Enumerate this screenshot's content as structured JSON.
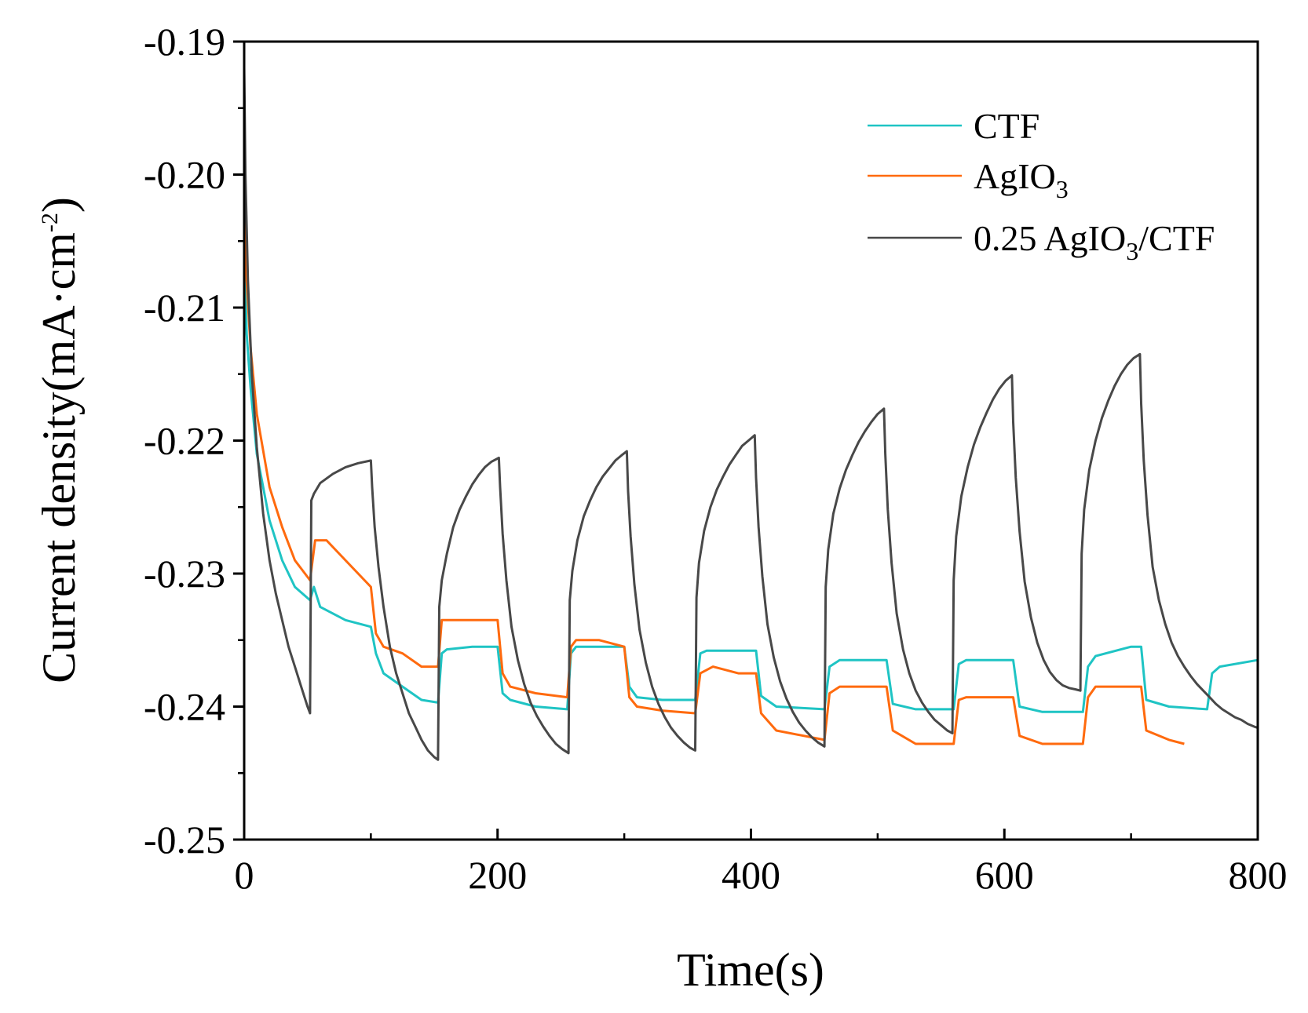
{
  "chart_data": {
    "type": "line",
    "title": "",
    "xlabel": "Time(s)",
    "ylabel_parts": {
      "main": "Current density(mA·cm",
      "sup": "-2",
      "close": ")"
    },
    "xlim": [
      0,
      800
    ],
    "ylim": [
      -0.25,
      -0.19
    ],
    "xticks": [
      0,
      200,
      400,
      600,
      800
    ],
    "xtick_labels": [
      "0",
      "200",
      "400",
      "600",
      "800"
    ],
    "yticks": [
      -0.25,
      -0.24,
      -0.23,
      -0.22,
      -0.21,
      -0.2,
      -0.19
    ],
    "ytick_labels": [
      "-0.25",
      "-0.24",
      "-0.23",
      "-0.22",
      "-0.21",
      "-0.20",
      "-0.19"
    ],
    "grid": false,
    "legend_position": "top-right",
    "series": [
      {
        "name": "CTF",
        "legend_parts": {
          "a": "CTF",
          "sub": "",
          "b": ""
        },
        "color": "#1fc4c4",
        "x": [
          0,
          2,
          5,
          10,
          20,
          30,
          40,
          52,
          55,
          60,
          80,
          100,
          104,
          110,
          125,
          140,
          153,
          156,
          160,
          180,
          200,
          204,
          210,
          230,
          255,
          258,
          262,
          280,
          300,
          304,
          310,
          330,
          356,
          360,
          365,
          390,
          404,
          408,
          420,
          458,
          462,
          470,
          500,
          507,
          512,
          530,
          560,
          564,
          570,
          600,
          607,
          612,
          630,
          662,
          666,
          672,
          700,
          708,
          712,
          730,
          760,
          764,
          770,
          800
        ],
        "y": [
          -0.205,
          -0.212,
          -0.216,
          -0.221,
          -0.226,
          -0.229,
          -0.231,
          -0.232,
          -0.231,
          -0.2325,
          -0.2335,
          -0.234,
          -0.236,
          -0.2375,
          -0.2385,
          -0.2395,
          -0.2397,
          -0.236,
          -0.2357,
          -0.2355,
          -0.2355,
          -0.239,
          -0.2395,
          -0.24,
          -0.2402,
          -0.236,
          -0.2355,
          -0.2355,
          -0.2355,
          -0.2385,
          -0.2393,
          -0.2395,
          -0.2395,
          -0.236,
          -0.2358,
          -0.2358,
          -0.2358,
          -0.2392,
          -0.24,
          -0.2402,
          -0.237,
          -0.2365,
          -0.2365,
          -0.2365,
          -0.2398,
          -0.2402,
          -0.2402,
          -0.2368,
          -0.2365,
          -0.2365,
          -0.2365,
          -0.24,
          -0.2404,
          -0.2404,
          -0.237,
          -0.2362,
          -0.2355,
          -0.2355,
          -0.2395,
          -0.24,
          -0.2402,
          -0.2375,
          -0.237,
          -0.2365
        ]
      },
      {
        "name": "AgIO3",
        "legend_parts": {
          "a": "AgIO",
          "sub": "3",
          "b": ""
        },
        "color": "#ff6a0e",
        "x": [
          0,
          2,
          5,
          10,
          20,
          30,
          40,
          52,
          56,
          65,
          80,
          100,
          104,
          110,
          125,
          140,
          153,
          156,
          165,
          180,
          200,
          204,
          210,
          230,
          255,
          258,
          262,
          280,
          300,
          304,
          310,
          330,
          356,
          360,
          370,
          390,
          404,
          408,
          420,
          458,
          462,
          470,
          500,
          507,
          512,
          530,
          560,
          564,
          570,
          600,
          607,
          612,
          630,
          662,
          666,
          672,
          700,
          708,
          712,
          730,
          742
        ],
        "y": [
          -0.2,
          -0.208,
          -0.213,
          -0.218,
          -0.2235,
          -0.2265,
          -0.229,
          -0.2305,
          -0.2275,
          -0.2275,
          -0.229,
          -0.231,
          -0.2345,
          -0.2355,
          -0.236,
          -0.237,
          -0.237,
          -0.2335,
          -0.2335,
          -0.2335,
          -0.2335,
          -0.2375,
          -0.2385,
          -0.239,
          -0.2393,
          -0.2355,
          -0.235,
          -0.235,
          -0.2355,
          -0.2393,
          -0.24,
          -0.2403,
          -0.2405,
          -0.2375,
          -0.237,
          -0.2375,
          -0.2375,
          -0.2405,
          -0.2418,
          -0.2425,
          -0.239,
          -0.2385,
          -0.2385,
          -0.2385,
          -0.2418,
          -0.2428,
          -0.2428,
          -0.2395,
          -0.2393,
          -0.2393,
          -0.2393,
          -0.2422,
          -0.2428,
          -0.2428,
          -0.2393,
          -0.2385,
          -0.2385,
          -0.2385,
          -0.2418,
          -0.2425,
          -0.2428
        ]
      },
      {
        "name": "0.25 AgIO3/CTF",
        "legend_parts": {
          "a": "0.25 AgIO",
          "sub": "3",
          "b": "/CTF"
        },
        "color": "#484848",
        "x": [
          0,
          1,
          3,
          6,
          10,
          15,
          20,
          25,
          30,
          35,
          40,
          45,
          50,
          52,
          53,
          55,
          60,
          70,
          80,
          90,
          100,
          101,
          103,
          106,
          110,
          115,
          120,
          125,
          130,
          135,
          140,
          145,
          150,
          153,
          154,
          156,
          160,
          165,
          170,
          175,
          180,
          185,
          190,
          195,
          201,
          202,
          204,
          207,
          211,
          216,
          221,
          226,
          231,
          236,
          241,
          246,
          251,
          256,
          257,
          259,
          263,
          268,
          273,
          278,
          283,
          288,
          293,
          298,
          302,
          303,
          305,
          308,
          312,
          317,
          322,
          327,
          332,
          337,
          342,
          347,
          352,
          356,
          357,
          359,
          363,
          368,
          373,
          378,
          383,
          388,
          393,
          398,
          403,
          404,
          406,
          409,
          413,
          418,
          423,
          428,
          433,
          438,
          443,
          448,
          453,
          458,
          459,
          461,
          465,
          470,
          475,
          480,
          485,
          490,
          495,
          500,
          505,
          506,
          508,
          511,
          515,
          520,
          525,
          530,
          535,
          540,
          545,
          550,
          555,
          559,
          560,
          562,
          566,
          571,
          576,
          581,
          586,
          591,
          596,
          601,
          606,
          607,
          609,
          612,
          616,
          621,
          626,
          631,
          636,
          641,
          646,
          651,
          656,
          660,
          661,
          663,
          667,
          672,
          677,
          682,
          687,
          692,
          697,
          702,
          707,
          708,
          710,
          713,
          717,
          722,
          727,
          732,
          737,
          742,
          747,
          752,
          757,
          762,
          767,
          772,
          777,
          782,
          787,
          792,
          797,
          800
        ],
        "y": [
          -0.192,
          -0.2,
          -0.208,
          -0.215,
          -0.2205,
          -0.2255,
          -0.229,
          -0.2315,
          -0.2335,
          -0.2355,
          -0.237,
          -0.2385,
          -0.24,
          -0.2405,
          -0.2245,
          -0.224,
          -0.2232,
          -0.2225,
          -0.222,
          -0.2217,
          -0.2215,
          -0.2235,
          -0.2265,
          -0.2295,
          -0.2325,
          -0.2355,
          -0.2375,
          -0.239,
          -0.2405,
          -0.2415,
          -0.2425,
          -0.2433,
          -0.2438,
          -0.244,
          -0.2325,
          -0.2305,
          -0.2285,
          -0.2265,
          -0.2252,
          -0.2242,
          -0.2233,
          -0.2226,
          -0.222,
          -0.2216,
          -0.2213,
          -0.2235,
          -0.227,
          -0.2305,
          -0.234,
          -0.2365,
          -0.2383,
          -0.2397,
          -0.2407,
          -0.2415,
          -0.2422,
          -0.2428,
          -0.2432,
          -0.2435,
          -0.232,
          -0.2298,
          -0.2275,
          -0.2257,
          -0.2245,
          -0.2235,
          -0.2227,
          -0.2221,
          -0.2215,
          -0.2211,
          -0.2208,
          -0.2238,
          -0.2272,
          -0.2308,
          -0.2342,
          -0.2367,
          -0.2385,
          -0.2398,
          -0.2408,
          -0.2416,
          -0.2422,
          -0.2427,
          -0.2431,
          -0.2433,
          -0.2318,
          -0.2292,
          -0.2268,
          -0.225,
          -0.2237,
          -0.2227,
          -0.2218,
          -0.2211,
          -0.2204,
          -0.22,
          -0.2196,
          -0.2228,
          -0.2265,
          -0.2302,
          -0.2338,
          -0.2363,
          -0.2381,
          -0.2394,
          -0.2404,
          -0.2412,
          -0.2418,
          -0.2423,
          -0.2427,
          -0.243,
          -0.231,
          -0.2282,
          -0.2255,
          -0.2236,
          -0.2222,
          -0.2211,
          -0.2201,
          -0.2193,
          -0.2186,
          -0.218,
          -0.2176,
          -0.221,
          -0.2252,
          -0.2292,
          -0.233,
          -0.2357,
          -0.2375,
          -0.2388,
          -0.2397,
          -0.2404,
          -0.241,
          -0.2414,
          -0.2418,
          -0.242,
          -0.2305,
          -0.2272,
          -0.2242,
          -0.222,
          -0.2203,
          -0.219,
          -0.2179,
          -0.2169,
          -0.2161,
          -0.2155,
          -0.2151,
          -0.2186,
          -0.2228,
          -0.2268,
          -0.2306,
          -0.2333,
          -0.2352,
          -0.2365,
          -0.2374,
          -0.238,
          -0.2384,
          -0.2386,
          -0.2387,
          -0.2388,
          -0.2285,
          -0.2252,
          -0.2222,
          -0.22,
          -0.2183,
          -0.217,
          -0.2159,
          -0.215,
          -0.2143,
          -0.2138,
          -0.2135,
          -0.2172,
          -0.2215,
          -0.2256,
          -0.2295,
          -0.232,
          -0.2338,
          -0.2352,
          -0.2362,
          -0.237,
          -0.2377,
          -0.2383,
          -0.2388,
          -0.2393,
          -0.2398,
          -0.2402,
          -0.2405,
          -0.2408,
          -0.241,
          -0.2413,
          -0.2415,
          -0.2416
        ]
      }
    ]
  }
}
